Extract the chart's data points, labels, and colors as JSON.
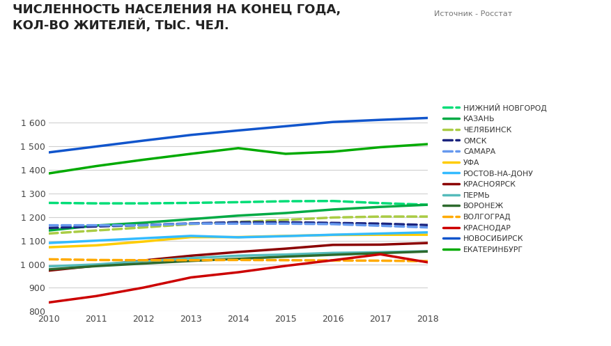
{
  "title": "ЧИСЛЕННОСТЬ НАСЕЛЕНИЯ НА КОНЕЦ ГОДА,\nКОЛ-ВО ЖИТЕЛЕЙ, ТЫС. ЧЕЛ.",
  "source": "Источник - Росстат",
  "years": [
    2010,
    2011,
    2012,
    2013,
    2014,
    2015,
    2016,
    2017,
    2018
  ],
  "series": [
    {
      "name": "НИЖНИЙ НОВГОРОД",
      "color": "#00dd77",
      "linestyle": "--",
      "linewidth": 2.5,
      "values": [
        1260,
        1258,
        1258,
        1260,
        1263,
        1267,
        1268,
        1259,
        1252
      ]
    },
    {
      "name": "КАЗАНЬ",
      "color": "#00aa44",
      "linestyle": "-",
      "linewidth": 2.5,
      "values": [
        1143,
        1164,
        1176,
        1191,
        1206,
        1217,
        1232,
        1243,
        1252
      ]
    },
    {
      "name": "ЧЕЛЯБИНСК",
      "color": "#aacc44",
      "linestyle": "--",
      "linewidth": 2.5,
      "values": [
        1130,
        1143,
        1156,
        1170,
        1179,
        1188,
        1198,
        1202,
        1202
      ]
    },
    {
      "name": "ОМСК",
      "color": "#1a237e",
      "linestyle": "--",
      "linewidth": 2.5,
      "values": [
        1154,
        1160,
        1166,
        1173,
        1178,
        1178,
        1175,
        1172,
        1166
      ]
    },
    {
      "name": "САМАРА",
      "color": "#6699ee",
      "linestyle": "--",
      "linewidth": 2.5,
      "values": [
        1165,
        1165,
        1165,
        1172,
        1172,
        1172,
        1170,
        1163,
        1156
      ]
    },
    {
      "name": "УФА",
      "color": "#ffcc00",
      "linestyle": "-",
      "linewidth": 2.5,
      "values": [
        1072,
        1080,
        1096,
        1115,
        1115,
        1120,
        1124,
        1125,
        1125
      ]
    },
    {
      "name": "РОСТОВ-НА-ДОНУ",
      "color": "#33bbff",
      "linestyle": "-",
      "linewidth": 2.5,
      "values": [
        1090,
        1100,
        1110,
        1120,
        1114,
        1119,
        1125,
        1130,
        1135
      ]
    },
    {
      "name": "КРАСНОЯРСК",
      "color": "#8b0000",
      "linestyle": "-",
      "linewidth": 2.5,
      "values": [
        973,
        994,
        1016,
        1036,
        1052,
        1066,
        1082,
        1083,
        1090
      ]
    },
    {
      "name": "ПЕРМЬ",
      "color": "#55bbbb",
      "linestyle": "-",
      "linewidth": 2.5,
      "values": [
        991,
        999,
        1013,
        1026,
        1036,
        1041,
        1048,
        1051,
        1055
      ]
    },
    {
      "name": "ВОРОНЕЖ",
      "color": "#2d6a2d",
      "linestyle": "-",
      "linewidth": 2.5,
      "values": [
        978,
        992,
        1003,
        1014,
        1023,
        1032,
        1040,
        1047,
        1054
      ]
    },
    {
      "name": "ВОЛГОГРАД",
      "color": "#ffaa00",
      "linestyle": "--",
      "linewidth": 2.5,
      "values": [
        1021,
        1018,
        1017,
        1017,
        1018,
        1017,
        1016,
        1015,
        1013
      ]
    },
    {
      "name": "КРАСНОДАР",
      "color": "#cc0000",
      "linestyle": "-",
      "linewidth": 2.5,
      "values": [
        838,
        865,
        901,
        944,
        966,
        993,
        1017,
        1042,
        1008
      ]
    },
    {
      "name": "НОВОСИБИРСК",
      "color": "#1155cc",
      "linestyle": "-",
      "linewidth": 2.5,
      "values": [
        1474,
        1499,
        1524,
        1548,
        1567,
        1585,
        1603,
        1612,
        1620
      ]
    },
    {
      "name": "ЕКАТЕРИНБУРГ",
      "color": "#00aa00",
      "linestyle": "-",
      "linewidth": 2.5,
      "values": [
        1385,
        1416,
        1443,
        1468,
        1492,
        1468,
        1477,
        1496,
        1509
      ]
    }
  ],
  "ylim": [
    800,
    1680
  ],
  "yticks": [
    800,
    900,
    1000,
    1100,
    1200,
    1300,
    1400,
    1500,
    1600
  ],
  "background_color": "#ffffff",
  "grid_color": "#d0d0d0",
  "title_fontsize": 13,
  "axis_fontsize": 9
}
